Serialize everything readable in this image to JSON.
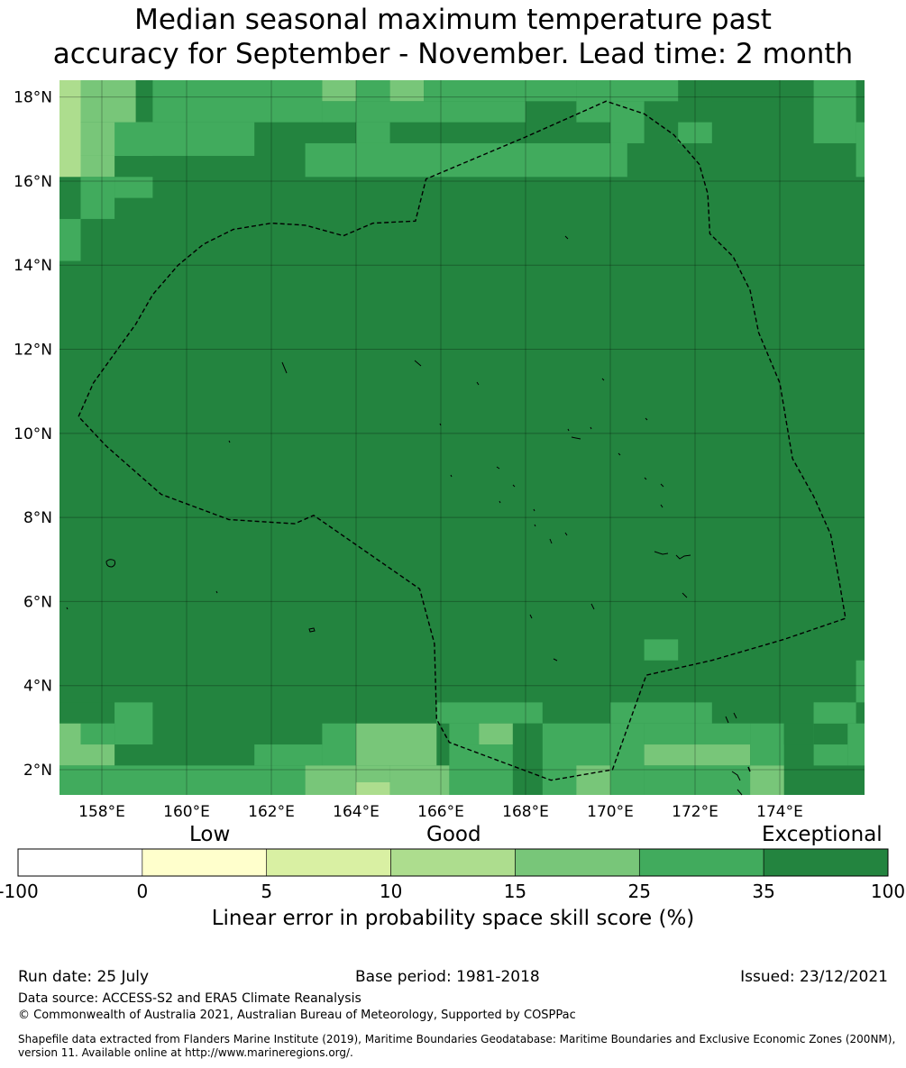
{
  "title_line1": "Median seasonal maximum temperature past",
  "title_line2": "accuracy for September - November. Lead time: 2 month",
  "map": {
    "lon_range": [
      157,
      176
    ],
    "lat_range": [
      1.4,
      18.4
    ],
    "lon_ticks": [
      "158°E",
      "160°E",
      "162°E",
      "164°E",
      "166°E",
      "168°E",
      "170°E",
      "172°E",
      "174°E"
    ],
    "lat_ticks": [
      "18°N",
      "16°N",
      "14°N",
      "12°N",
      "10°N",
      "8°N",
      "6°N",
      "4°N",
      "2°N"
    ],
    "colors": {
      "exceptional": "#23843f",
      "very_good": "#41ab5d",
      "good_high": "#78c679",
      "good_low": "#addd8e",
      "low_high": "#d9f0a3",
      "low": "#ffffcc"
    },
    "eez_boundary": [
      [
        157.45,
        10.4
      ],
      [
        157.8,
        11.2
      ],
      [
        158.3,
        11.9
      ],
      [
        158.8,
        12.6
      ],
      [
        159.2,
        13.3
      ],
      [
        159.8,
        14.0
      ],
      [
        160.4,
        14.5
      ],
      [
        161.1,
        14.85
      ],
      [
        162.0,
        15.0
      ],
      [
        162.8,
        14.95
      ],
      [
        163.7,
        14.7
      ],
      [
        164.4,
        15.0
      ],
      [
        165.4,
        15.05
      ],
      [
        165.65,
        16.05
      ],
      [
        168.0,
        17.05
      ],
      [
        169.9,
        17.9
      ],
      [
        170.8,
        17.6
      ],
      [
        171.5,
        17.1
      ],
      [
        172.1,
        16.4
      ],
      [
        172.3,
        15.7
      ],
      [
        172.35,
        14.75
      ],
      [
        172.9,
        14.2
      ],
      [
        173.3,
        13.4
      ],
      [
        173.5,
        12.4
      ],
      [
        174.0,
        11.2
      ],
      [
        174.3,
        9.4
      ],
      [
        174.8,
        8.5
      ],
      [
        175.2,
        7.6
      ],
      [
        175.4,
        6.5
      ],
      [
        175.55,
        5.6
      ],
      [
        174.1,
        5.1
      ],
      [
        172.4,
        4.6
      ],
      [
        170.85,
        4.25
      ],
      [
        170.05,
        2.0
      ],
      [
        168.6,
        1.75
      ],
      [
        166.2,
        2.65
      ],
      [
        165.9,
        3.2
      ],
      [
        165.85,
        5.0
      ],
      [
        165.5,
        6.3
      ],
      [
        163.0,
        8.05
      ],
      [
        162.55,
        7.85
      ],
      [
        161.0,
        7.95
      ],
      [
        159.4,
        8.55
      ],
      [
        158.1,
        9.7
      ],
      [
        157.45,
        10.4
      ]
    ],
    "cells": [
      {
        "lon": [
          157.0,
          157.5
        ],
        "lat": [
          16.1,
          18.4
        ],
        "color": "good_low"
      },
      {
        "lon": [
          157.5,
          158.8
        ],
        "lat": [
          17.4,
          18.4
        ],
        "color": "good_high"
      },
      {
        "lon": [
          157.5,
          159.2
        ],
        "lat": [
          16.6,
          17.4
        ],
        "color": "good_high"
      },
      {
        "lon": [
          157.5,
          158.3
        ],
        "lat": [
          16.1,
          16.6
        ],
        "color": "good_high"
      },
      {
        "lon": [
          158.3,
          161.6
        ],
        "lat": [
          16.6,
          17.4
        ],
        "color": "very_good"
      },
      {
        "lon": [
          159.2,
          163.2
        ],
        "lat": [
          17.4,
          18.4
        ],
        "color": "very_good"
      },
      {
        "lon": [
          163.2,
          164.0
        ],
        "lat": [
          17.9,
          18.4
        ],
        "color": "good_high"
      },
      {
        "lon": [
          164.0,
          164.8
        ],
        "lat": [
          17.9,
          18.4
        ],
        "color": "very_good"
      },
      {
        "lon": [
          164.8,
          165.6
        ],
        "lat": [
          17.9,
          18.4
        ],
        "color": "good_high"
      },
      {
        "lon": [
          163.2,
          168.0
        ],
        "lat": [
          17.4,
          17.9
        ],
        "color": "very_good"
      },
      {
        "lon": [
          164.0,
          164.8
        ],
        "lat": [
          16.9,
          17.4
        ],
        "color": "very_good"
      },
      {
        "lon": [
          162.8,
          170.4
        ],
        "lat": [
          16.1,
          16.9
        ],
        "color": "very_good"
      },
      {
        "lon": [
          165.6,
          169.2
        ],
        "lat": [
          17.9,
          18.4
        ],
        "color": "very_good"
      },
      {
        "lon": [
          169.2,
          170.0
        ],
        "lat": [
          17.4,
          18.4
        ],
        "color": "very_good"
      },
      {
        "lon": [
          170.0,
          171.6
        ],
        "lat": [
          17.9,
          18.4
        ],
        "color": "very_good"
      },
      {
        "lon": [
          170.0,
          170.8
        ],
        "lat": [
          16.9,
          17.9
        ],
        "color": "very_good"
      },
      {
        "lon": [
          171.6,
          172.4
        ],
        "lat": [
          16.9,
          17.4
        ],
        "color": "very_good"
      },
      {
        "lon": [
          172.4,
          174.8
        ],
        "lat": [
          17.9,
          18.4
        ],
        "color": "exceptional"
      },
      {
        "lon": [
          174.8,
          175.8
        ],
        "lat": [
          16.9,
          18.4
        ],
        "color": "very_good"
      },
      {
        "lon": [
          175.8,
          176.0
        ],
        "lat": [
          16.1,
          17.4
        ],
        "color": "very_good"
      },
      {
        "lon": [
          157.5,
          158.3
        ],
        "lat": [
          15.1,
          16.1
        ],
        "color": "very_good"
      },
      {
        "lon": [
          158.3,
          159.2
        ],
        "lat": [
          15.6,
          16.1
        ],
        "color": "very_good"
      },
      {
        "lon": [
          157.0,
          157.5
        ],
        "lat": [
          14.1,
          15.1
        ],
        "color": "very_good"
      },
      {
        "lon": [
          170.8,
          171.6
        ],
        "lat": [
          4.6,
          5.1
        ],
        "color": "very_good"
      },
      {
        "lon": [
          175.8,
          176.0
        ],
        "lat": [
          3.6,
          4.6
        ],
        "color": "very_good"
      },
      {
        "lon": [
          157.0,
          158.3
        ],
        "lat": [
          3.1,
          3.6
        ],
        "color": "exceptional"
      },
      {
        "lon": [
          158.3,
          159.2
        ],
        "lat": [
          2.6,
          3.6
        ],
        "color": "very_good"
      },
      {
        "lon": [
          157.5,
          158.3
        ],
        "lat": [
          2.6,
          3.1
        ],
        "color": "very_good"
      },
      {
        "lon": [
          157.0,
          157.5
        ],
        "lat": [
          2.1,
          3.1
        ],
        "color": "good_high"
      },
      {
        "lon": [
          157.5,
          158.3
        ],
        "lat": [
          2.1,
          2.6
        ],
        "color": "good_high"
      },
      {
        "lon": [
          157.0,
          157.5
        ],
        "lat": [
          1.4,
          2.1
        ],
        "color": "very_good"
      },
      {
        "lon": [
          157.5,
          162.8
        ],
        "lat": [
          1.4,
          2.1
        ],
        "color": "very_good"
      },
      {
        "lon": [
          161.6,
          163.2
        ],
        "lat": [
          2.1,
          2.6
        ],
        "color": "very_good"
      },
      {
        "lon": [
          163.2,
          164.0
        ],
        "lat": [
          2.1,
          3.1
        ],
        "color": "very_good"
      },
      {
        "lon": [
          162.8,
          164.8
        ],
        "lat": [
          1.4,
          2.1
        ],
        "color": "good_high"
      },
      {
        "lon": [
          164.0,
          164.8
        ],
        "lat": [
          1.4,
          1.7
        ],
        "color": "good_low"
      },
      {
        "lon": [
          164.0,
          165.9
        ],
        "lat": [
          2.1,
          3.1
        ],
        "color": "good_high"
      },
      {
        "lon": [
          164.8,
          166.2
        ],
        "lat": [
          1.4,
          2.1
        ],
        "color": "good_high"
      },
      {
        "lon": [
          165.9,
          168.4
        ],
        "lat": [
          3.1,
          3.6
        ],
        "color": "very_good"
      },
      {
        "lon": [
          166.2,
          166.9
        ],
        "lat": [
          2.6,
          3.1
        ],
        "color": "very_good"
      },
      {
        "lon": [
          166.9,
          167.7
        ],
        "lat": [
          2.6,
          3.1
        ],
        "color": "good_high"
      },
      {
        "lon": [
          166.2,
          167.7
        ],
        "lat": [
          1.4,
          2.6
        ],
        "color": "very_good"
      },
      {
        "lon": [
          167.7,
          168.4
        ],
        "lat": [
          1.4,
          3.1
        ],
        "color": "exceptional"
      },
      {
        "lon": [
          168.4,
          170.0
        ],
        "lat": [
          1.4,
          3.1
        ],
        "color": "very_good"
      },
      {
        "lon": [
          169.2,
          170.05
        ],
        "lat": [
          1.4,
          2.1
        ],
        "color": "good_high"
      },
      {
        "lon": [
          170.0,
          172.4
        ],
        "lat": [
          3.1,
          3.6
        ],
        "color": "very_good"
      },
      {
        "lon": [
          170.0,
          170.8
        ],
        "lat": [
          1.4,
          3.1
        ],
        "color": "very_good"
      },
      {
        "lon": [
          170.8,
          173.3
        ],
        "lat": [
          2.1,
          2.6
        ],
        "color": "good_high"
      },
      {
        "lon": [
          170.8,
          173.3
        ],
        "lat": [
          1.4,
          2.1
        ],
        "color": "very_good"
      },
      {
        "lon": [
          170.8,
          173.3
        ],
        "lat": [
          2.6,
          3.1
        ],
        "color": "very_good"
      },
      {
        "lon": [
          173.3,
          174.1
        ],
        "lat": [
          2.1,
          3.1
        ],
        "color": "very_good"
      },
      {
        "lon": [
          173.3,
          174.1
        ],
        "lat": [
          1.4,
          2.1
        ],
        "color": "good_high"
      },
      {
        "lon": [
          174.1,
          174.8
        ],
        "lat": [
          2.6,
          3.1
        ],
        "color": "exceptional"
      },
      {
        "lon": [
          174.8,
          175.6
        ],
        "lat": [
          2.1,
          3.6
        ],
        "color": "very_good"
      },
      {
        "lon": [
          175.6,
          176.0
        ],
        "lat": [
          2.1,
          3.1
        ],
        "color": "very_good"
      },
      {
        "lon": [
          174.8,
          175.6
        ],
        "lat": [
          2.6,
          3.1
        ],
        "color": "exceptional"
      },
      {
        "lon": [
          174.8,
          175.8
        ],
        "lat": [
          3.1,
          3.6
        ],
        "color": "very_good"
      }
    ]
  },
  "colorbar": {
    "category_labels": [
      "Low",
      "Good",
      "Exceptional"
    ],
    "tick_labels": [
      "-100",
      "0",
      "5",
      "10",
      "15",
      "25",
      "35",
      "100"
    ],
    "bins": [
      "#ffffff",
      "#ffffcc",
      "#d9f0a3",
      "#addd8e",
      "#78c679",
      "#41ab5d",
      "#23843f"
    ],
    "title": "Linear error in probability space skill score (%)"
  },
  "footer": {
    "run_date": "Run date: 25 July",
    "base_period": "Base period: 1981-2018",
    "issued": "Issued: 23/12/2021",
    "data_source": "Data source: ACCESS-S2 and ERA5 Climate Reanalysis",
    "copyright": "© Commonwealth of Australia 2021, Australian Bureau of Meteorology, Supported by COSPPac",
    "shapefile_line1": "Shapefile data extracted from Flanders Marine Institute (2019), Maritime Boundaries Geodatabase: Maritime Boundaries and Exclusive Economic Zones (200NM),",
    "shapefile_line2": "version 11. Available online at http://www.marineregions.org/."
  }
}
